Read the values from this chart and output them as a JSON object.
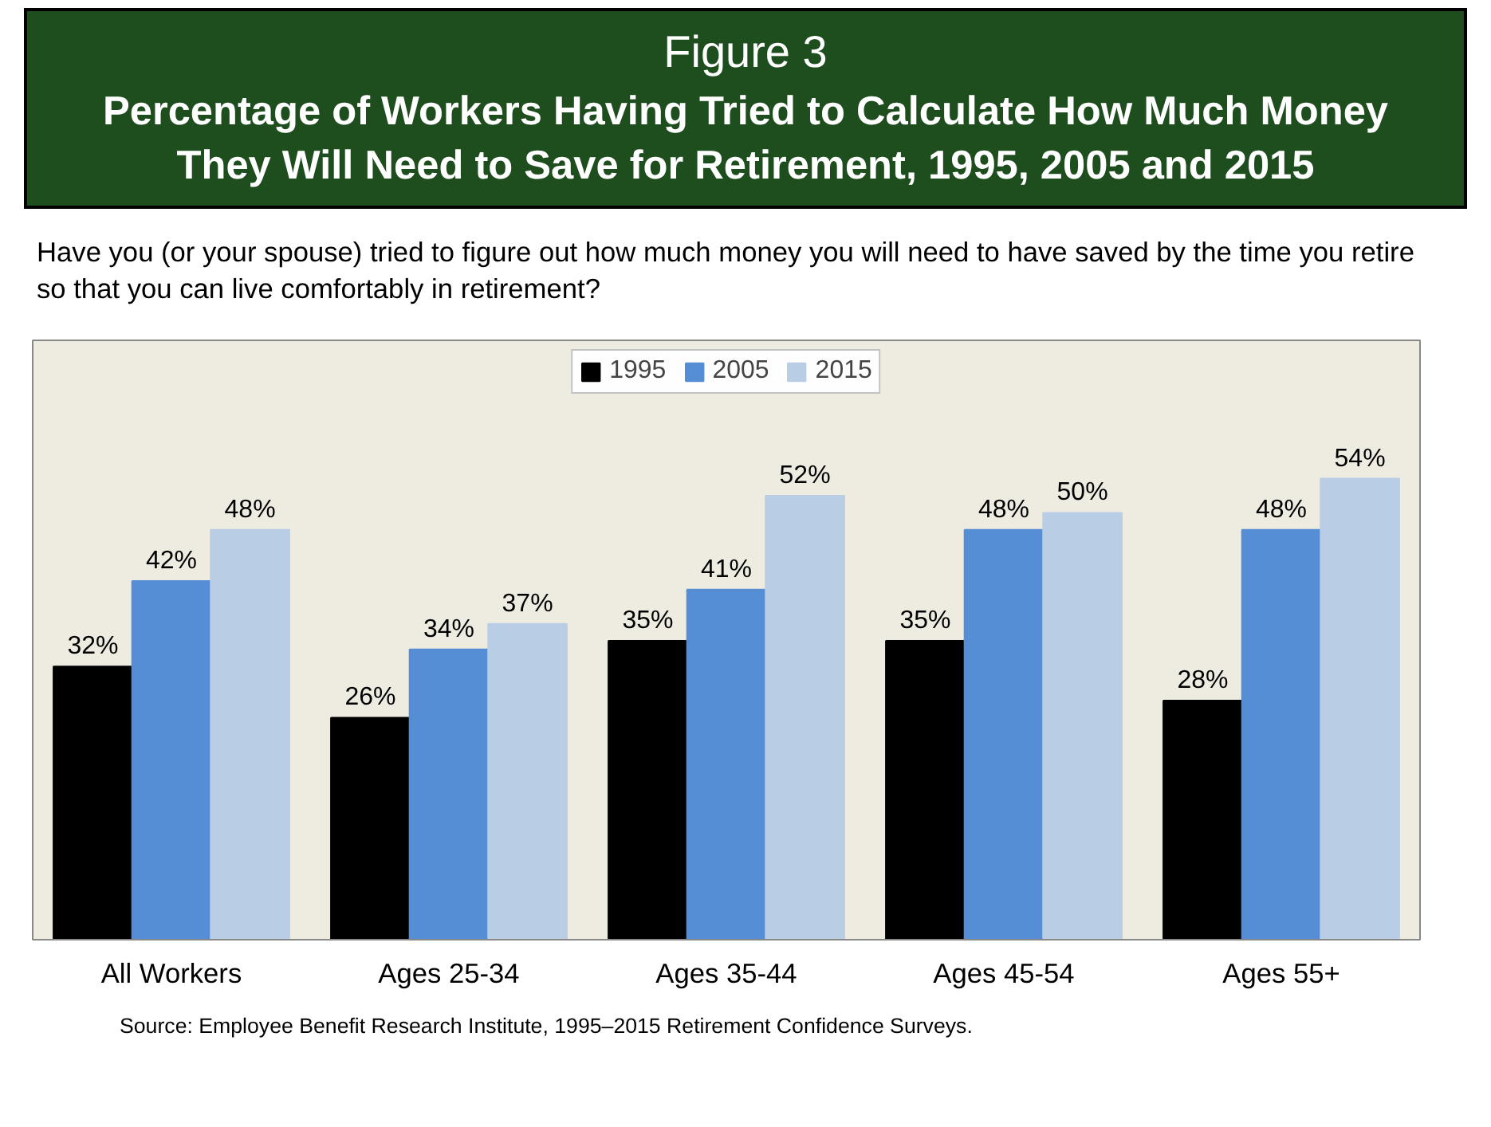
{
  "chart_data": {
    "type": "bar",
    "title": "Figure 3",
    "subtitle": "Percentage of Workers Having Tried to Calculate How Much Money They Will Need to Save for Retirement, 1995, 2005 and 2015",
    "annotations": [
      "Have you (or your spouse) tried to figure out how much money you will need to have saved by the time you retire so that you can live comfortably in retirement?",
      "Source:  Employee Benefit Research Institute, 1995–2015 Retirement Confidence Surveys."
    ],
    "categories": [
      "All Workers",
      "Ages 25-34",
      "Ages 35-44",
      "Ages 45-54",
      "Ages 55+"
    ],
    "series": [
      {
        "name": "1995",
        "color": "#000000",
        "values": [
          32,
          26,
          35,
          35,
          28
        ],
        "value_labels": [
          "32%",
          "26%",
          "35%",
          "35%",
          "28%"
        ]
      },
      {
        "name": "2005",
        "color": "#558ed5",
        "values": [
          42,
          34,
          41,
          48,
          48
        ],
        "value_labels": [
          "42%",
          "34%",
          "41%",
          "48%",
          "48%"
        ]
      },
      {
        "name": "2015",
        "color": "#b9cde5",
        "values": [
          48,
          37,
          52,
          50,
          54
        ],
        "value_labels": [
          "48%",
          "37%",
          "52%",
          "50%",
          "54%"
        ]
      }
    ],
    "legend": "top",
    "grid": false
  }
}
